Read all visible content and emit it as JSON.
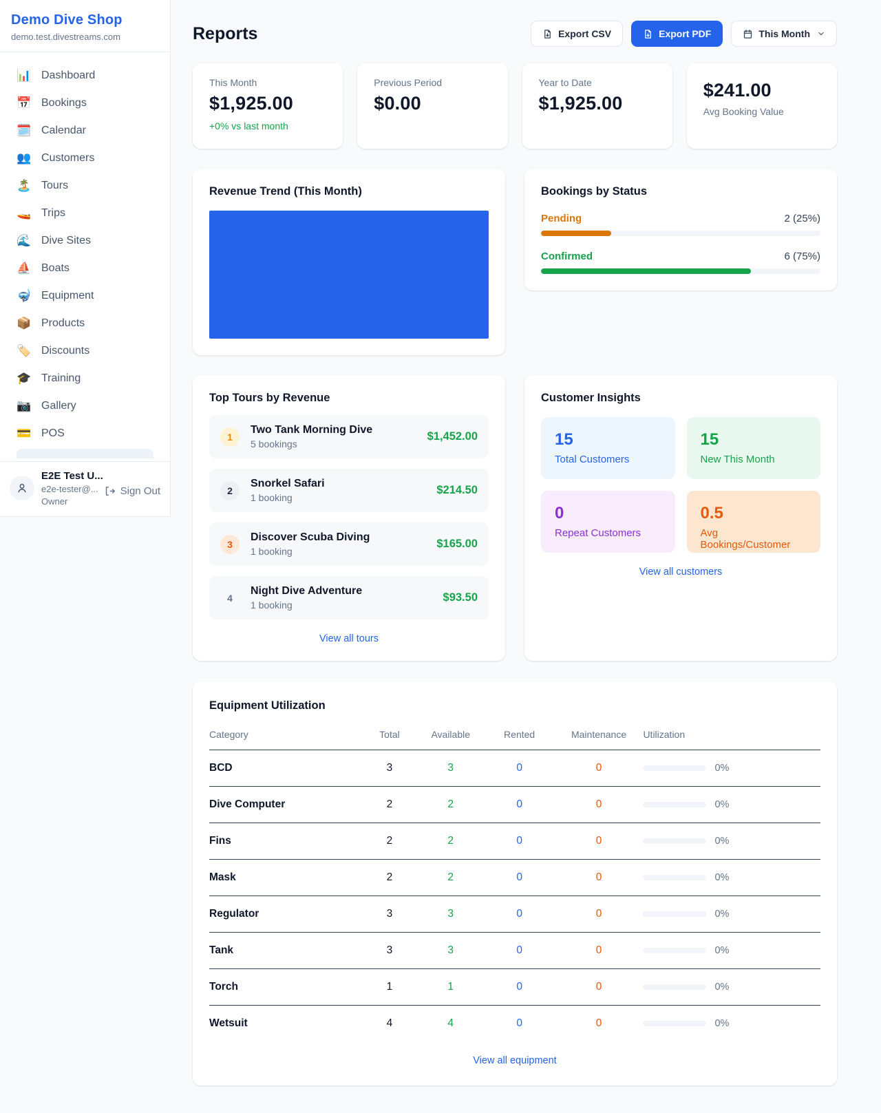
{
  "sidebar": {
    "shop_name": "Demo Dive Shop",
    "shop_domain": "demo.test.divestreams.com",
    "items": [
      {
        "icon": "📊",
        "label": "Dashboard"
      },
      {
        "icon": "📅",
        "label": "Bookings"
      },
      {
        "icon": "🗓️",
        "label": "Calendar"
      },
      {
        "icon": "👥",
        "label": "Customers"
      },
      {
        "icon": "🏝️",
        "label": "Tours"
      },
      {
        "icon": "🚤",
        "label": "Trips"
      },
      {
        "icon": "🌊",
        "label": "Dive Sites"
      },
      {
        "icon": "⛵",
        "label": "Boats"
      },
      {
        "icon": "🤿",
        "label": "Equipment"
      },
      {
        "icon": "📦",
        "label": "Products"
      },
      {
        "icon": "🏷️",
        "label": "Discounts"
      },
      {
        "icon": "🎓",
        "label": "Training"
      },
      {
        "icon": "📷",
        "label": "Gallery"
      },
      {
        "icon": "💳",
        "label": "POS"
      }
    ],
    "user": {
      "name": "E2E Test U...",
      "email": "e2e-tester@...",
      "role": "Owner",
      "sign_out_label": "Sign Out"
    }
  },
  "header": {
    "title": "Reports",
    "export_csv_label": "Export CSV",
    "export_pdf_label": "Export PDF",
    "period_selector_label": "This Month"
  },
  "stats": [
    {
      "label": "This Month",
      "value": "$1,925.00",
      "delta": "+0% vs last month"
    },
    {
      "label": "Previous Period",
      "value": "$0.00"
    },
    {
      "label": "Year to Date",
      "value": "$1,925.00"
    },
    {
      "label": "Avg Booking Value",
      "value": "$241.00"
    }
  ],
  "revenue_trend": {
    "title": "Revenue Trend (This Month)",
    "bar_color": "#2563eb"
  },
  "bookings_by_status": {
    "title": "Bookings by Status",
    "items": [
      {
        "label": "Pending",
        "count_text": "2 (25%)",
        "count": 2,
        "pct": 25,
        "color": "#d97706"
      },
      {
        "label": "Confirmed",
        "count_text": "6 (75%)",
        "count": 6,
        "pct": 75,
        "color": "#16a34a"
      }
    ]
  },
  "top_tours": {
    "title": "Top Tours by Revenue",
    "view_all_label": "View all tours",
    "items": [
      {
        "rank": "1",
        "name": "Two Tank Morning Dive",
        "bookings": "5 bookings",
        "revenue": "$1,452.00"
      },
      {
        "rank": "2",
        "name": "Snorkel Safari",
        "bookings": "1 booking",
        "revenue": "$214.50"
      },
      {
        "rank": "3",
        "name": "Discover Scuba Diving",
        "bookings": "1 booking",
        "revenue": "$165.00"
      },
      {
        "rank": "4",
        "name": "Night Dive Adventure",
        "bookings": "1 booking",
        "revenue": "$93.50"
      }
    ]
  },
  "customer_insights": {
    "title": "Customer Insights",
    "view_all_label": "View all customers",
    "tiles": [
      {
        "value": "15",
        "label": "Total Customers",
        "color": "#2563eb",
        "bg": "#edf5fd"
      },
      {
        "value": "15",
        "label": "New This Month",
        "color": "#16a34a",
        "bg": "#e8f8ee"
      },
      {
        "value": "0",
        "label": "Repeat Customers",
        "color": "#8b2fd6",
        "bg": "#f8ecfd"
      },
      {
        "value": "0.5",
        "label": "Avg Bookings/Customer",
        "color": "#e8590c",
        "bg": "#fce6cf"
      }
    ]
  },
  "equipment_utilization": {
    "title": "Equipment Utilization",
    "view_all_label": "View all equipment",
    "columns": [
      "Category",
      "Total",
      "Available",
      "Rented",
      "Maintenance",
      "Utilization"
    ],
    "rows": [
      {
        "category": "BCD",
        "total": "3",
        "available": "3",
        "rented": "0",
        "maintenance": "0",
        "utilization": "0%",
        "utilization_pct": 0
      },
      {
        "category": "Dive Computer",
        "total": "2",
        "available": "2",
        "rented": "0",
        "maintenance": "0",
        "utilization": "0%",
        "utilization_pct": 0
      },
      {
        "category": "Fins",
        "total": "2",
        "available": "2",
        "rented": "0",
        "maintenance": "0",
        "utilization": "0%",
        "utilization_pct": 0
      },
      {
        "category": "Mask",
        "total": "2",
        "available": "2",
        "rented": "0",
        "maintenance": "0",
        "utilization": "0%",
        "utilization_pct": 0
      },
      {
        "category": "Regulator",
        "total": "3",
        "available": "3",
        "rented": "0",
        "maintenance": "0",
        "utilization": "0%",
        "utilization_pct": 0
      },
      {
        "category": "Tank",
        "total": "3",
        "available": "3",
        "rented": "0",
        "maintenance": "0",
        "utilization": "0%",
        "utilization_pct": 0
      },
      {
        "category": "Torch",
        "total": "1",
        "available": "1",
        "rented": "0",
        "maintenance": "0",
        "utilization": "0%",
        "utilization_pct": 0
      },
      {
        "category": "Wetsuit",
        "total": "4",
        "available": "4",
        "rented": "0",
        "maintenance": "0",
        "utilization": "0%",
        "utilization_pct": 0
      }
    ]
  },
  "colors": {
    "brand_blue": "#2563eb",
    "success_green": "#16a34a",
    "pending_orange": "#d97706",
    "alert_orange": "#ea580c",
    "purple": "#8b2fd6",
    "page_bg": "#f8fafc"
  }
}
